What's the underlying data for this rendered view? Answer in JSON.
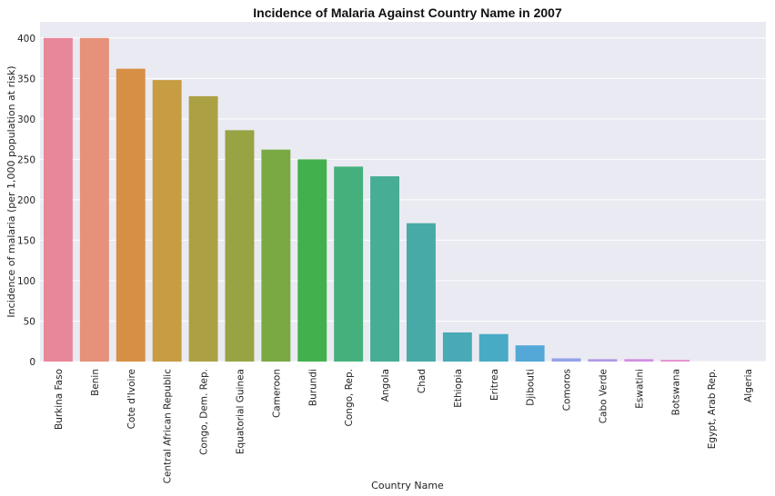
{
  "chart_data": {
    "type": "bar",
    "title": "Incidence of Malaria Against Country Name in 2007",
    "xlabel": "Country Name",
    "ylabel": "Incidence of malaria (per 1,000 population at risk)",
    "ylim": [
      0,
      420
    ],
    "yticks": [
      0,
      50,
      100,
      150,
      200,
      250,
      300,
      350,
      400
    ],
    "grid": true,
    "categories": [
      "Burkina Faso",
      "Benin",
      "Cote d'Ivoire",
      "Central African Republic",
      "Congo, Dem. Rep.",
      "Equatorial Guinea",
      "Cameroon",
      "Burundi",
      "Congo, Rep.",
      "Angola",
      "Chad",
      "Ethiopia",
      "Eritrea",
      "Djibouti",
      "Comoros",
      "Cabo Verde",
      "Eswatini",
      "Botswana",
      "Egypt, Arab Rep.",
      "Algeria"
    ],
    "values": [
      400,
      400,
      362,
      348,
      328,
      286,
      262,
      250,
      241,
      229,
      171,
      36,
      34,
      20,
      4,
      3,
      3,
      2,
      0,
      0
    ],
    "colors": [
      "#e8879a",
      "#e6917a",
      "#d68f44",
      "#c79c42",
      "#aca044",
      "#98a444",
      "#7aa944",
      "#42b14d",
      "#46b07c",
      "#47ad94",
      "#48aaa6",
      "#49a9b5",
      "#49aac5",
      "#54a8d8",
      "#93a3e6",
      "#b199e6",
      "#d28ee3",
      "#e48bcc",
      "#e585b2",
      "#e6849e"
    ]
  }
}
